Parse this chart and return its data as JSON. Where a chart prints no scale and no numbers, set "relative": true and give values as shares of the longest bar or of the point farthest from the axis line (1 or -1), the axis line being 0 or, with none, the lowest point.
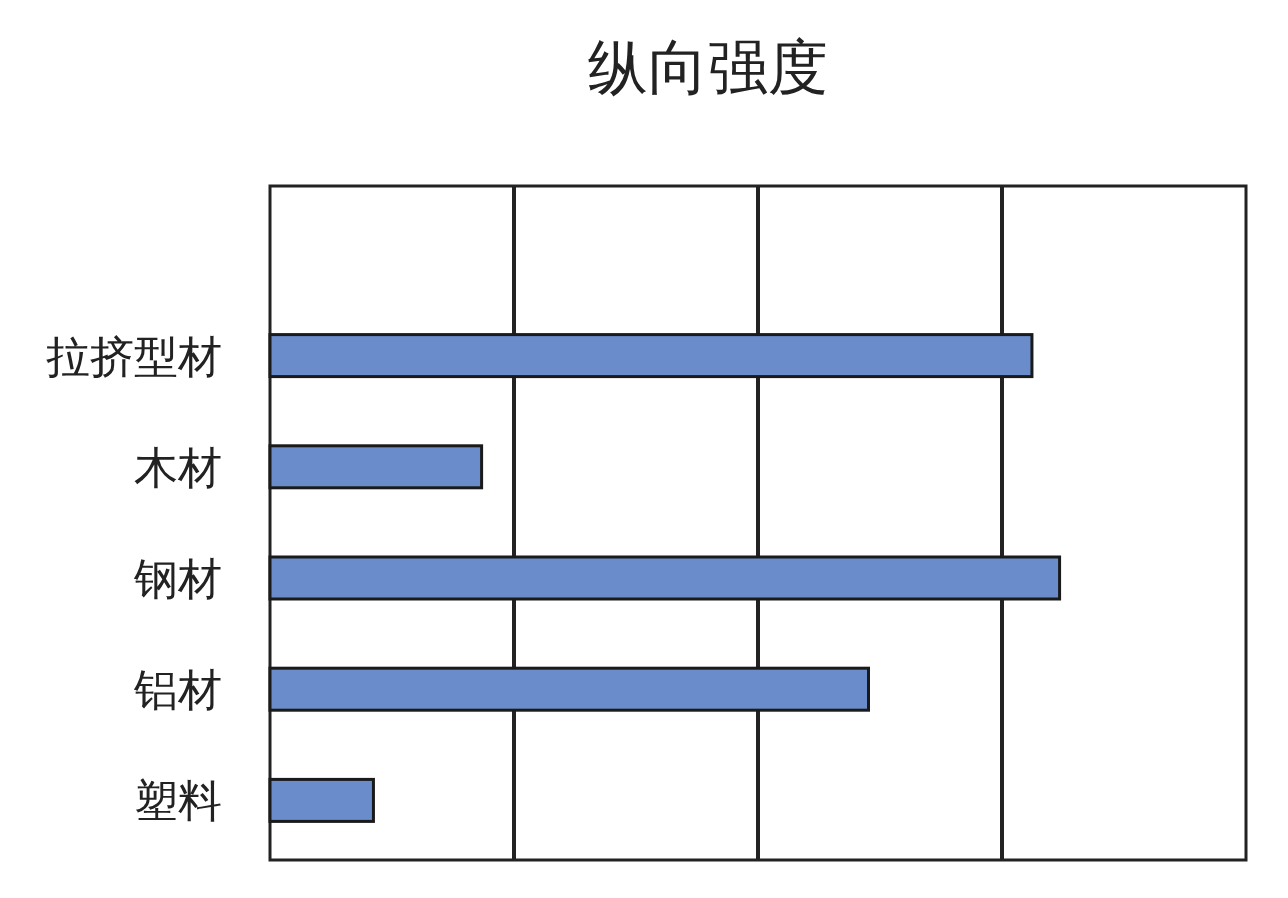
{
  "chart_data": {
    "type": "bar",
    "title": "纵向强度",
    "orientation": "horizontal",
    "relative": true,
    "categories": [
      "拉挤型材",
      "木材",
      "钢材",
      "铝材",
      "塑料"
    ],
    "values": [
      0.965,
      0.268,
      1,
      0.758,
      0.131
    ],
    "color": "#6a8ccb",
    "grid": "x"
  }
}
